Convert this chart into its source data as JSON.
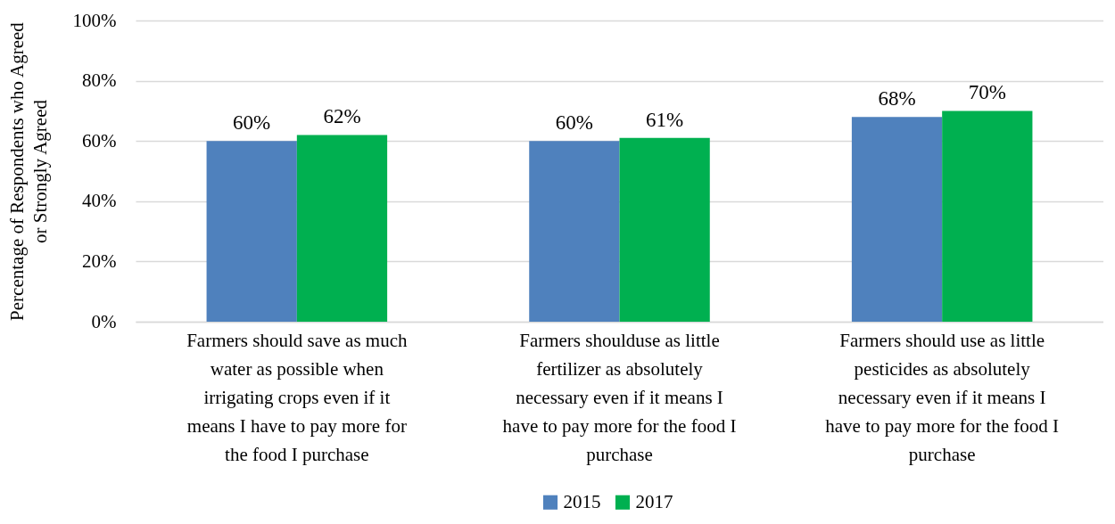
{
  "chart_data": {
    "type": "bar",
    "ylabel": "Percentage of Respondents who Agreed or Strongly Agreed",
    "categories": [
      "Farmers should save as much water as possible when irrigating crops even if it means I have to pay more for the food I purchase",
      "Farmers shoulduse as little fertilizer as absolutely necessary even if it means I have to pay more for the food I purchase",
      "Farmers should use as little pesticides as absolutely necessary even if it means I have to pay more for the food I purchase"
    ],
    "series": [
      {
        "name": "2015",
        "color": "#4f81bd",
        "values": [
          60,
          60,
          68
        ],
        "value_labels": [
          "60%",
          "60%",
          "68%"
        ]
      },
      {
        "name": "2017",
        "color": "#00b050",
        "values": [
          62,
          61,
          70
        ],
        "value_labels": [
          "62%",
          "61%",
          "70%"
        ]
      }
    ],
    "ylim": [
      0,
      100
    ],
    "yticks": [
      {
        "value": 0,
        "label": "0%"
      },
      {
        "value": 20,
        "label": "20%"
      },
      {
        "value": 40,
        "label": "40%"
      },
      {
        "value": 60,
        "label": "60%"
      },
      {
        "value": 80,
        "label": "80%"
      },
      {
        "value": 100,
        "label": "100%"
      }
    ],
    "grid": "y",
    "legend": "bottom"
  }
}
